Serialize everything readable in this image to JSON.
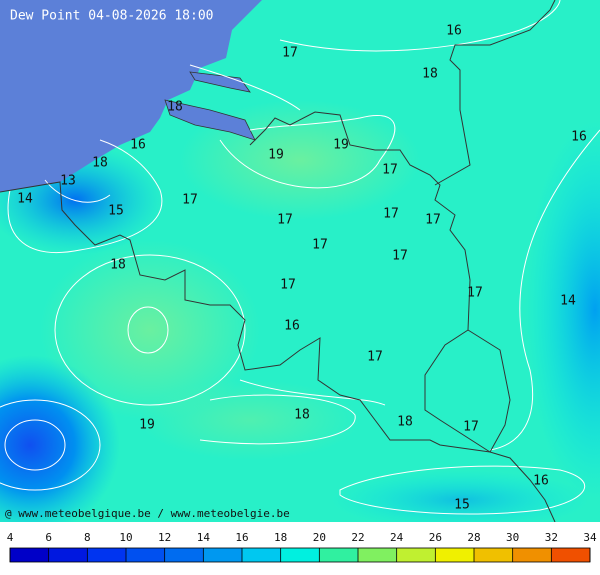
{
  "title": "Dew Point 04-08-2026 18:00",
  "credit": "@ www.meteobelgique.be / www.meteobelgie.be",
  "contour_labels": [
    16,
    17,
    18,
    16,
    18,
    16,
    19,
    19,
    18,
    13,
    17,
    14,
    15,
    17,
    17,
    17,
    17,
    17,
    17,
    18,
    17,
    17,
    14,
    16,
    17,
    18,
    19,
    18,
    17,
    16,
    15
  ],
  "colorbar": {
    "ticks": [
      4,
      6,
      8,
      10,
      12,
      14,
      16,
      18,
      20,
      22,
      24,
      26,
      28,
      30,
      32,
      34
    ],
    "colors": [
      "#0000c8",
      "#0018e0",
      "#0034f0",
      "#0050f0",
      "#006cf0",
      "#0098f0",
      "#00c8f0",
      "#00f0e0",
      "#30f0a0",
      "#80f060",
      "#c0f030",
      "#f0f000",
      "#f0c000",
      "#f09000",
      "#f05000"
    ]
  }
}
